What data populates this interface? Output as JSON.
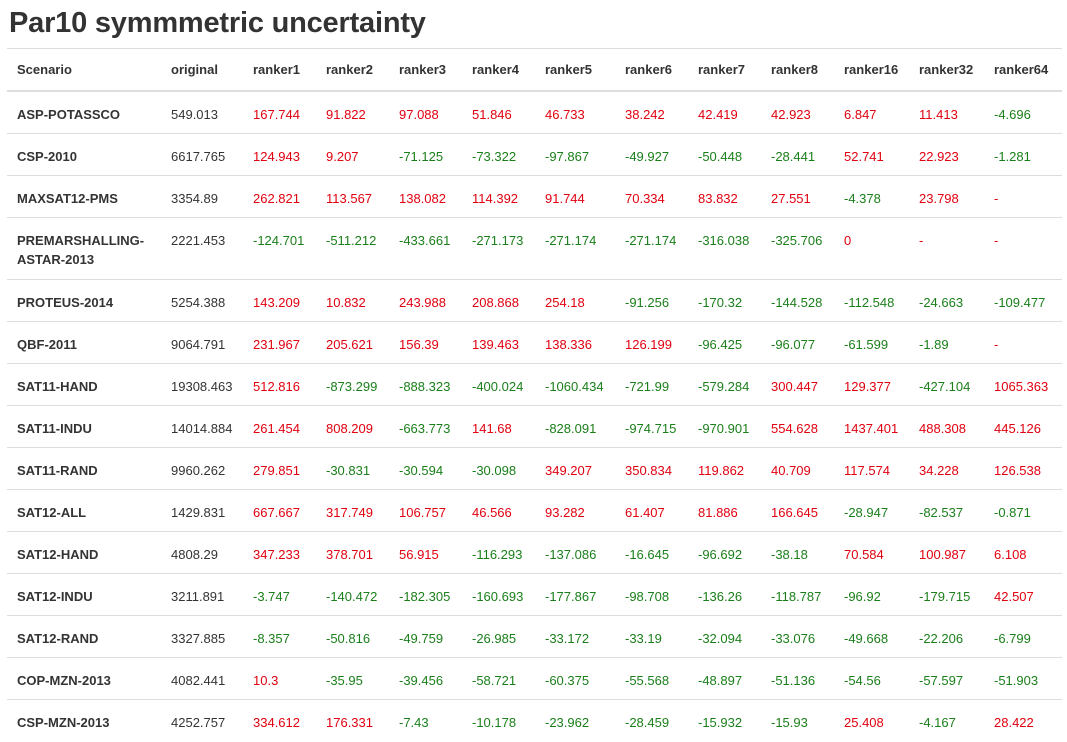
{
  "title": "Par10 symmmetric uncertainty",
  "colors": {
    "positive": "#e0000f",
    "negative": "#1a7f1a",
    "neutral": "#333333"
  },
  "columns": [
    "Scenario",
    "original",
    "ranker1",
    "ranker2",
    "ranker3",
    "ranker4",
    "ranker5",
    "ranker6",
    "ranker7",
    "ranker8",
    "ranker16",
    "ranker32",
    "ranker64"
  ],
  "rows": [
    {
      "scenario": "ASP-POTASSCO",
      "original": "549.013",
      "values": [
        "167.744",
        "91.822",
        "97.088",
        "51.846",
        "46.733",
        "38.242",
        "42.419",
        "42.923",
        "6.847",
        "11.413",
        "-4.696"
      ]
    },
    {
      "scenario": "CSP-2010",
      "original": "6617.765",
      "values": [
        "124.943",
        "9.207",
        "-71.125",
        "-73.322",
        "-97.867",
        "-49.927",
        "-50.448",
        "-28.441",
        "52.741",
        "22.923",
        "-1.281"
      ]
    },
    {
      "scenario": "MAXSAT12-PMS",
      "original": "3354.89",
      "values": [
        "262.821",
        "113.567",
        "138.082",
        "114.392",
        "91.744",
        "70.334",
        "83.832",
        "27.551",
        "-4.378",
        "23.798",
        "-"
      ]
    },
    {
      "scenario": "PREMARSHALLING-ASTAR-2013",
      "original": "2221.453",
      "values": [
        "-124.701",
        "-511.212",
        "-433.661",
        "-271.173",
        "-271.174",
        "-271.174",
        "-316.038",
        "-325.706",
        "0",
        "-",
        "-"
      ]
    },
    {
      "scenario": "PROTEUS-2014",
      "original": "5254.388",
      "values": [
        "143.209",
        "10.832",
        "243.988",
        "208.868",
        "254.18",
        "-91.256",
        "-170.32",
        "-144.528",
        "-112.548",
        "-24.663",
        "-109.477"
      ]
    },
    {
      "scenario": "QBF-2011",
      "original": "9064.791",
      "values": [
        "231.967",
        "205.621",
        "156.39",
        "139.463",
        "138.336",
        "126.199",
        "-96.425",
        "-96.077",
        "-61.599",
        "-1.89",
        "-"
      ]
    },
    {
      "scenario": "SAT11-HAND",
      "original": "19308.463",
      "values": [
        "512.816",
        "-873.299",
        "-888.323",
        "-400.024",
        "-1060.434",
        "-721.99",
        "-579.284",
        "300.447",
        "129.377",
        "-427.104",
        "1065.363"
      ]
    },
    {
      "scenario": "SAT11-INDU",
      "original": "14014.884",
      "values": [
        "261.454",
        "808.209",
        "-663.773",
        "141.68",
        "-828.091",
        "-974.715",
        "-970.901",
        "554.628",
        "1437.401",
        "488.308",
        "445.126"
      ]
    },
    {
      "scenario": "SAT11-RAND",
      "original": "9960.262",
      "values": [
        "279.851",
        "-30.831",
        "-30.594",
        "-30.098",
        "349.207",
        "350.834",
        "119.862",
        "40.709",
        "117.574",
        "34.228",
        "126.538"
      ]
    },
    {
      "scenario": "SAT12-ALL",
      "original": "1429.831",
      "values": [
        "667.667",
        "317.749",
        "106.757",
        "46.566",
        "93.282",
        "61.407",
        "81.886",
        "166.645",
        "-28.947",
        "-82.537",
        "-0.871"
      ]
    },
    {
      "scenario": "SAT12-HAND",
      "original": "4808.29",
      "values": [
        "347.233",
        "378.701",
        "56.915",
        "-116.293",
        "-137.086",
        "-16.645",
        "-96.692",
        "-38.18",
        "70.584",
        "100.987",
        "6.108"
      ]
    },
    {
      "scenario": "SAT12-INDU",
      "original": "3211.891",
      "values": [
        "-3.747",
        "-140.472",
        "-182.305",
        "-160.693",
        "-177.867",
        "-98.708",
        "-136.26",
        "-118.787",
        "-96.92",
        "-179.715",
        "42.507"
      ]
    },
    {
      "scenario": "SAT12-RAND",
      "original": "3327.885",
      "values": [
        "-8.357",
        "-50.816",
        "-49.759",
        "-26.985",
        "-33.172",
        "-33.19",
        "-32.094",
        "-33.076",
        "-49.668",
        "-22.206",
        "-6.799"
      ]
    },
    {
      "scenario": "COP-MZN-2013",
      "original": "4082.441",
      "values": [
        "10.3",
        "-35.95",
        "-39.456",
        "-58.721",
        "-60.375",
        "-55.568",
        "-48.897",
        "-51.136",
        "-54.56",
        "-57.597",
        "-51.903"
      ]
    },
    {
      "scenario": "CSP-MZN-2013",
      "original": "4252.757",
      "values": [
        "334.612",
        "176.331",
        "-7.43",
        "-10.178",
        "-23.962",
        "-28.459",
        "-15.932",
        "-15.93",
        "25.408",
        "-4.167",
        "28.422"
      ]
    }
  ]
}
